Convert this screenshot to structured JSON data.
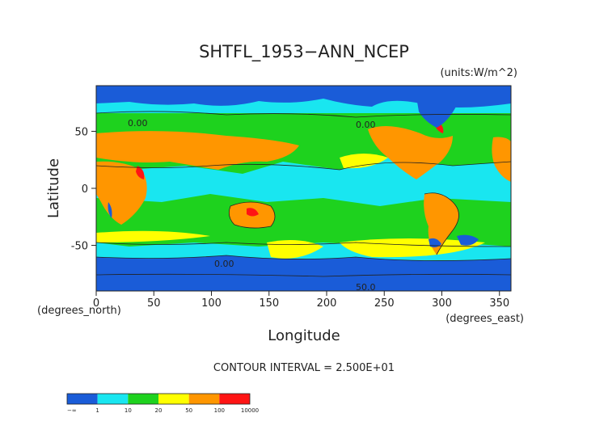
{
  "chart_data": {
    "type": "heatmap",
    "title": "SHTFL_1953−ANN_NCEP",
    "units": "(units:W/m^2)",
    "xlabel": "Longitude",
    "ylabel": "Latitude",
    "x_unit_label": "(degrees_east)",
    "y_unit_label": "(degrees_north)",
    "xlim": [
      0,
      360
    ],
    "ylim": [
      -90,
      90
    ],
    "x_ticks": [
      0,
      50,
      100,
      150,
      200,
      250,
      300,
      350
    ],
    "y_ticks": [
      -50,
      0,
      50
    ],
    "contour_interval": "CONTOUR INTERVAL = 2.500E+01",
    "contour_labels": [
      "0.00",
      "0.00",
      "0.00",
      "50.0"
    ],
    "colorbar": {
      "labels": [
        "−∞",
        "1",
        "10",
        "20",
        "50",
        "100",
        "10000"
      ],
      "colors": [
        "#1a5cd8",
        "#19e6f0",
        "#1ed21e",
        "#ffff00",
        "#ff9600",
        "#ff1414"
      ]
    }
  }
}
